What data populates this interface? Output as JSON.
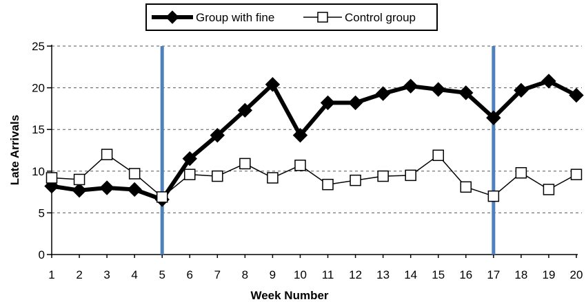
{
  "chart_data": {
    "type": "line",
    "xlabel": "Week Number",
    "ylabel": "Late Arrivals",
    "x": [
      1,
      2,
      3,
      4,
      5,
      6,
      7,
      8,
      9,
      10,
      11,
      12,
      13,
      14,
      15,
      16,
      17,
      18,
      19,
      20
    ],
    "xlim": [
      1,
      20
    ],
    "ylim": [
      0,
      25
    ],
    "yticks": [
      0,
      5,
      10,
      15,
      20,
      25
    ],
    "grid": "horizontal dashed",
    "legend_position": "top",
    "vertical_markers": {
      "x": [
        5,
        17
      ],
      "color": "#4f81bd"
    },
    "series": [
      {
        "name": "Group with fine",
        "marker": "filled-diamond",
        "color": "#000000",
        "values": [
          8.2,
          7.7,
          8.0,
          7.8,
          6.6,
          11.5,
          14.3,
          17.3,
          20.4,
          14.3,
          18.2,
          18.2,
          19.3,
          20.2,
          19.8,
          19.4,
          16.4,
          19.7,
          20.8,
          19.1
        ]
      },
      {
        "name": "Control group",
        "marker": "open-square",
        "color": "#000000",
        "values": [
          9.2,
          9.0,
          12.0,
          9.7,
          6.9,
          9.6,
          9.4,
          10.9,
          9.2,
          10.7,
          8.4,
          8.9,
          9.4,
          9.5,
          11.9,
          8.1,
          7.0,
          9.8,
          7.8,
          9.6
        ]
      }
    ]
  }
}
